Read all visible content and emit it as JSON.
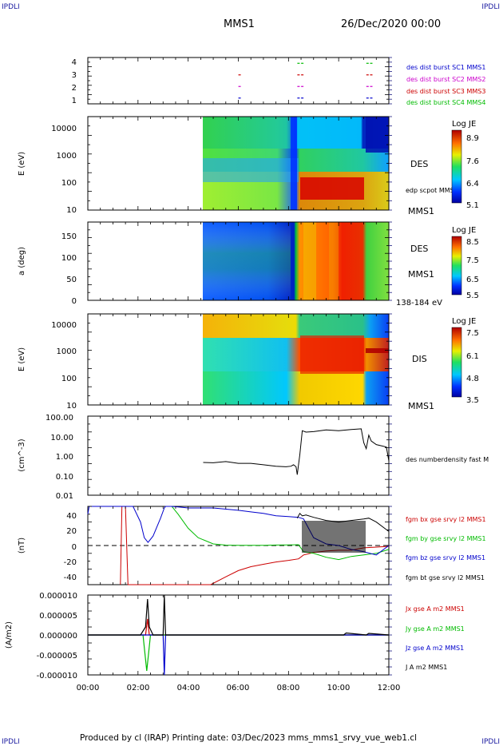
{
  "corner_tl": "IPDLI",
  "corner_tr": "IPDLI",
  "corner_bl": "IPDLI",
  "corner_br": "IPDLI",
  "header": {
    "title": "MMS1",
    "date": "26/Dec/2020 00:00"
  },
  "footer": "Produced by cl (IRAP)   Printing date: 03/Dec/2023   mms_mms1_srvy_vue_web1.cl",
  "colors": {
    "frame": "#000000",
    "mms1": "#0000cc",
    "mms2": "#cc00cc",
    "mms3": "#cc0000",
    "mms4": "#00bb00"
  },
  "chart_data": [
    {
      "type": "scatter",
      "panel": "burst",
      "ylim": [
        0.5,
        4.5
      ],
      "yticks": [
        "4",
        "3",
        "2",
        "1"
      ],
      "legend": [
        {
          "name": "des dist burst SC1 MMS1",
          "color": "#0000cc"
        },
        {
          "name": "des dist burst SC2 MMS2",
          "color": "#cc00cc"
        },
        {
          "name": "des dist burst SC3 MMS3",
          "color": "#cc0000"
        },
        {
          "name": "des dist burst SC4 MMS4",
          "color": "#00bb00"
        }
      ],
      "marks": [
        {
          "sc": 1,
          "x": [
            6.05,
            8.4,
            8.55,
            11.15,
            11.3
          ]
        },
        {
          "sc": 2,
          "x": [
            6.05,
            8.4,
            8.55,
            11.15,
            11.3
          ]
        },
        {
          "sc": 3,
          "x": [
            6.05,
            8.4,
            8.55,
            11.15,
            11.3
          ]
        },
        {
          "sc": 4,
          "x": [
            8.4,
            8.55,
            11.15,
            11.3
          ]
        }
      ]
    },
    {
      "type": "heatmap",
      "panel": "des_energy",
      "ylabel": "E (eV)",
      "yscale": "log",
      "yticks": [
        "10000",
        "1000",
        "100",
        "10"
      ],
      "side_labels": [
        "DES",
        "edp scpot MMS1",
        "MMS1"
      ],
      "colorbar": {
        "title": "Log JE",
        "ticks": [
          "8.9",
          "7.6",
          "6.4",
          "5.1"
        ]
      }
    },
    {
      "type": "heatmap",
      "panel": "des_pitch",
      "ylabel": "a (deg)",
      "ylim": [
        0,
        180
      ],
      "yticks": [
        "150",
        "100",
        "50",
        "0"
      ],
      "side_labels": [
        "DES",
        "MMS1",
        "138-184 eV"
      ],
      "colorbar": {
        "title": "Log JE",
        "ticks": [
          "8.5",
          "7.5",
          "6.5",
          "5.5"
        ]
      }
    },
    {
      "type": "heatmap",
      "panel": "dis_energy",
      "ylabel": "E (eV)",
      "yscale": "log",
      "yticks": [
        "10000",
        "1000",
        "100",
        "10"
      ],
      "side_labels": [
        "DIS",
        "MMS1"
      ],
      "colorbar": {
        "title": "Log JE",
        "ticks": [
          "7.5",
          "6.1",
          "4.8",
          "3.5"
        ]
      }
    },
    {
      "type": "line",
      "panel": "density",
      "ylabel": "(cm^-3)",
      "yscale": "log",
      "yticks": [
        "100.00",
        "10.00",
        "1.00",
        "0.10",
        "0.01"
      ],
      "series": [
        {
          "name": "des numberdensity fast M",
          "color": "#000000",
          "x": [
            4.6,
            5.0,
            5.5,
            6.0,
            6.5,
            7.0,
            7.5,
            7.9,
            8.1,
            8.2,
            8.3,
            8.35,
            8.45,
            8.55,
            8.7,
            9.0,
            9.5,
            10.0,
            10.5,
            10.9,
            11.0,
            11.1,
            11.2,
            11.3,
            11.5,
            11.9,
            12.0
          ],
          "y": [
            0.5,
            0.48,
            0.55,
            0.45,
            0.45,
            0.38,
            0.32,
            0.3,
            0.32,
            0.38,
            0.3,
            0.12,
            1.2,
            20,
            17,
            18,
            22,
            20,
            23,
            25,
            5,
            2.5,
            12,
            6,
            4,
            3,
            0.6
          ]
        }
      ]
    },
    {
      "type": "line",
      "panel": "magnetic_field",
      "ylabel": "(nT)",
      "ylim": [
        -50,
        50
      ],
      "yticks": [
        "40",
        "20",
        "0",
        "-20",
        "-40"
      ],
      "series": [
        {
          "name": "fgm bx gse srvy l2 MMS1",
          "color": "#cc0000",
          "x": [
            1.3,
            1.36,
            1.45,
            1.5,
            1.6,
            4.9,
            5.5,
            6.0,
            6.5,
            7.0,
            7.5,
            8.0,
            8.4,
            8.6,
            9.0,
            9.5,
            10.0,
            10.5,
            11.0,
            11.5,
            12.0
          ],
          "y": [
            -50,
            50,
            50,
            50,
            -50,
            -50,
            -40,
            -32,
            -27,
            -24,
            -21,
            -19,
            -17,
            -12,
            -9,
            -7,
            -6,
            -6,
            -3,
            -2,
            -1
          ]
        },
        {
          "name": "fgm by gse srvy l2 MMS1",
          "color": "#00bb00",
          "x": [
            3.35,
            3.6,
            4.0,
            4.4,
            5.0,
            5.5,
            6.0,
            6.5,
            7.0,
            7.5,
            8.0,
            8.4,
            8.6,
            9.0,
            9.5,
            10.0,
            10.5,
            11.0,
            11.5,
            12.0
          ],
          "y": [
            50,
            40,
            22,
            10,
            2,
            0.5,
            0.2,
            0.3,
            0.2,
            0.6,
            0.8,
            1,
            -8,
            -10,
            -15,
            -18,
            -14,
            -12,
            -10,
            -5
          ]
        },
        {
          "name": "fgm bz gse srvy l2 MMS1",
          "color": "#0000cc",
          "x": [
            0.0,
            0.05,
            1.8,
            2.1,
            2.25,
            2.4,
            2.6,
            2.9,
            3.05,
            3.1,
            3.35,
            3.7,
            4.0,
            5.0,
            6.0,
            6.5,
            7.0,
            7.5,
            8.0,
            8.4,
            8.6,
            9.0,
            9.5,
            10.0,
            10.5,
            11.0,
            11.5,
            12.0
          ],
          "y": [
            40,
            50,
            50,
            30,
            10,
            4,
            12,
            35,
            48,
            50,
            50,
            49,
            48,
            48,
            45,
            43,
            41,
            38,
            37,
            36,
            34,
            10,
            2,
            0,
            -5,
            -8,
            -12,
            0
          ]
        },
        {
          "name": "fgm bt gse srvy l2 MMS1",
          "color": "#000000",
          "x": [
            8.35,
            8.45,
            8.55,
            8.7,
            9.0,
            9.5,
            10.0,
            10.5,
            11.0,
            11.2,
            11.5,
            12.0
          ],
          "y": [
            35,
            41,
            38,
            39,
            36,
            32,
            30,
            32,
            34,
            35,
            30,
            18
          ]
        }
      ],
      "reference_line": 0
    },
    {
      "type": "line",
      "panel": "current_density",
      "ylabel": "(A/m2)",
      "ylim": [
        -0.0001,
        0.0001
      ],
      "yticks": [
        "0.000010",
        "0.000005",
        "0.000000",
        "-0.000005",
        "-0.000010"
      ],
      "series": [
        {
          "name": "Jx gse A m2 MMS1",
          "color": "#cc0000",
          "x": [
            0,
            2.3,
            2.38,
            2.45,
            12
          ],
          "y": [
            0,
            0,
            4e-06,
            0,
            0
          ]
        },
        {
          "name": "Jy gse A m2 MMS1",
          "color": "#00bb00",
          "x": [
            0,
            2.2,
            2.35,
            2.5,
            12
          ],
          "y": [
            0,
            0,
            -9e-06,
            0,
            0
          ]
        },
        {
          "name": "Jz gse A m2 MMS1",
          "color": "#0000cc",
          "x": [
            0,
            3.0,
            3.05,
            3.1,
            12
          ],
          "y": [
            0,
            0,
            -1e-05,
            0,
            0
          ]
        },
        {
          "name": "J A m2 MMS1",
          "color": "#000000",
          "x": [
            0,
            2.1,
            2.3,
            2.38,
            2.45,
            2.6,
            3.0,
            3.05,
            3.1,
            10.2,
            10.3,
            11.1,
            11.2,
            12
          ],
          "y": [
            0,
            0,
            2e-06,
            9e-06,
            2e-06,
            0,
            0,
            1e-05,
            0,
            0,
            5e-07,
            0,
            4e-07,
            0
          ]
        }
      ],
      "xticks": [
        "00:00",
        "02:00",
        "04:00",
        "06:00",
        "08:00",
        "10:00",
        "12:00"
      ],
      "xlim": [
        0,
        12
      ]
    }
  ]
}
